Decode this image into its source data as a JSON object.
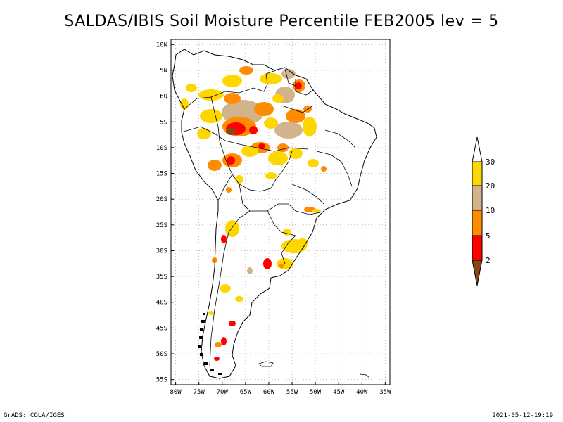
{
  "title": "SALDAS/IBIS Soil Moisture Percentile FEB2005 lev = 5",
  "footer_left": "GrADS: COLA/IGES",
  "footer_right": "2021-05-12-19:19",
  "map": {
    "lon_ticks": [
      "80W",
      "75W",
      "70W",
      "65W",
      "60W",
      "55W",
      "50W",
      "45W",
      "40W",
      "35W"
    ],
    "lat_ticks": [
      "10N",
      "5N",
      "EQ",
      "5S",
      "10S",
      "15S",
      "20S",
      "25S",
      "30S",
      "35S",
      "40S",
      "45S",
      "50S",
      "55S"
    ],
    "lon_range": [
      -81,
      -34
    ],
    "lat_range": [
      -56,
      11
    ]
  },
  "legend": {
    "labels": [
      "30",
      "20",
      "10",
      "5",
      "2"
    ],
    "colors": [
      "#ffffff",
      "#ffd700",
      "#d2b48c",
      "#ff8c00",
      "#ff0000",
      "#8b4513"
    ]
  },
  "colors": {
    "cat_2": "#8b4513",
    "cat_5": "#ff0000",
    "cat_10": "#ff8c00",
    "cat_20": "#d2b48c",
    "cat_30": "#ffd700"
  }
}
